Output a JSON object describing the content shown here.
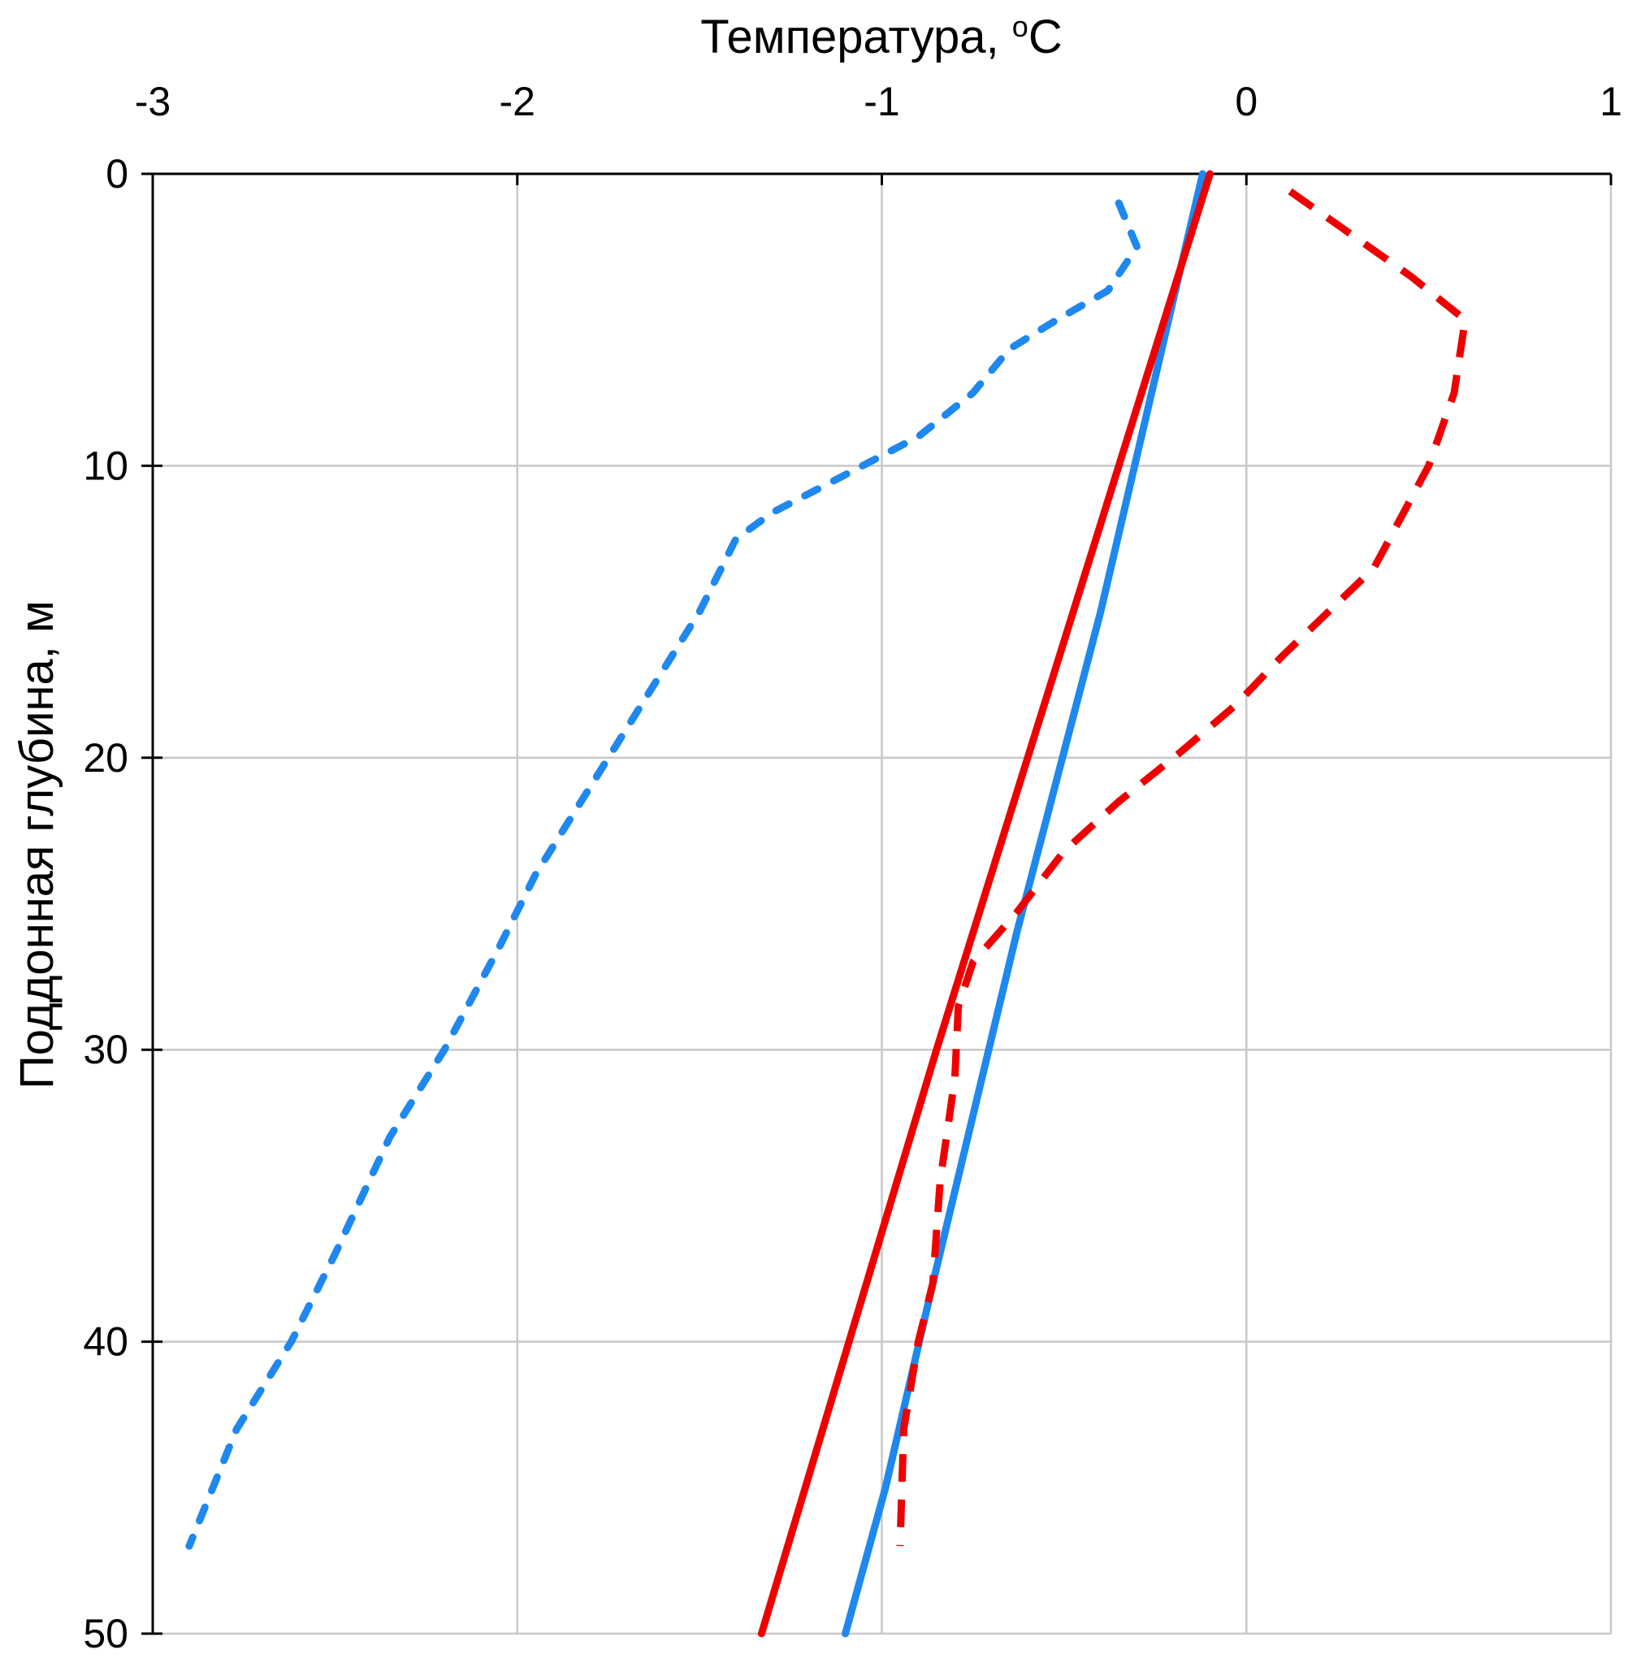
{
  "chart_data": {
    "type": "line",
    "x_title": "Температура, ",
    "x_title_sup": "o",
    "x_title_unit": "C",
    "y_title": "Поддонная глубина, м",
    "xlim": [
      -3,
      1
    ],
    "ylim": [
      0,
      50
    ],
    "x_ticks": [
      "-3",
      "-2",
      "-1",
      "0",
      "1"
    ],
    "y_ticks": [
      "0",
      "10",
      "20",
      "30",
      "40",
      "50"
    ],
    "grid": true,
    "series": [
      {
        "name": "solid-blue",
        "color": "#1e88ef",
        "style": "solid",
        "points": [
          [
            -0.12,
            0
          ],
          [
            -0.4,
            15
          ],
          [
            -0.63,
            26
          ],
          [
            -0.86,
            38
          ],
          [
            -0.99,
            45
          ],
          [
            -1.1,
            50
          ]
        ]
      },
      {
        "name": "solid-red",
        "color": "#ee0000",
        "style": "solid",
        "points": [
          [
            -0.1,
            0
          ],
          [
            -0.85,
            30
          ],
          [
            -1.33,
            50
          ]
        ]
      },
      {
        "name": "dotted-blue",
        "color": "#1e88ef",
        "style": "dotted",
        "points": [
          [
            -0.35,
            1
          ],
          [
            -0.3,
            2.5
          ],
          [
            -0.38,
            4
          ],
          [
            -0.52,
            5
          ],
          [
            -0.65,
            6
          ],
          [
            -0.75,
            7.5
          ],
          [
            -0.9,
            9
          ],
          [
            -1.13,
            10.5
          ],
          [
            -1.3,
            11.6
          ],
          [
            -1.4,
            12.5
          ],
          [
            -1.5,
            15
          ],
          [
            -1.65,
            18
          ],
          [
            -1.8,
            21
          ],
          [
            -1.95,
            24
          ],
          [
            -2.05,
            26.5
          ],
          [
            -2.2,
            30
          ],
          [
            -2.35,
            33
          ],
          [
            -2.5,
            37
          ],
          [
            -2.62,
            40
          ],
          [
            -2.77,
            43
          ],
          [
            -2.9,
            47
          ]
        ]
      },
      {
        "name": "dashed-red",
        "color": "#ee0000",
        "style": "dashed",
        "points": [
          [
            0.12,
            0.6
          ],
          [
            0.45,
            3.5
          ],
          [
            0.6,
            5
          ],
          [
            0.57,
            7.5
          ],
          [
            0.5,
            10
          ],
          [
            0.35,
            13.5
          ],
          [
            0.1,
            16.5
          ],
          [
            -0.03,
            18.2
          ],
          [
            -0.18,
            19.8
          ],
          [
            -0.35,
            21.5
          ],
          [
            -0.5,
            23.2
          ],
          [
            -0.63,
            25.3
          ],
          [
            -0.75,
            27
          ],
          [
            -0.79,
            28.5
          ],
          [
            -0.8,
            31
          ],
          [
            -0.84,
            34.5
          ],
          [
            -0.86,
            38
          ],
          [
            -0.9,
            40
          ],
          [
            -0.94,
            43
          ],
          [
            -0.95,
            47
          ]
        ]
      }
    ]
  }
}
